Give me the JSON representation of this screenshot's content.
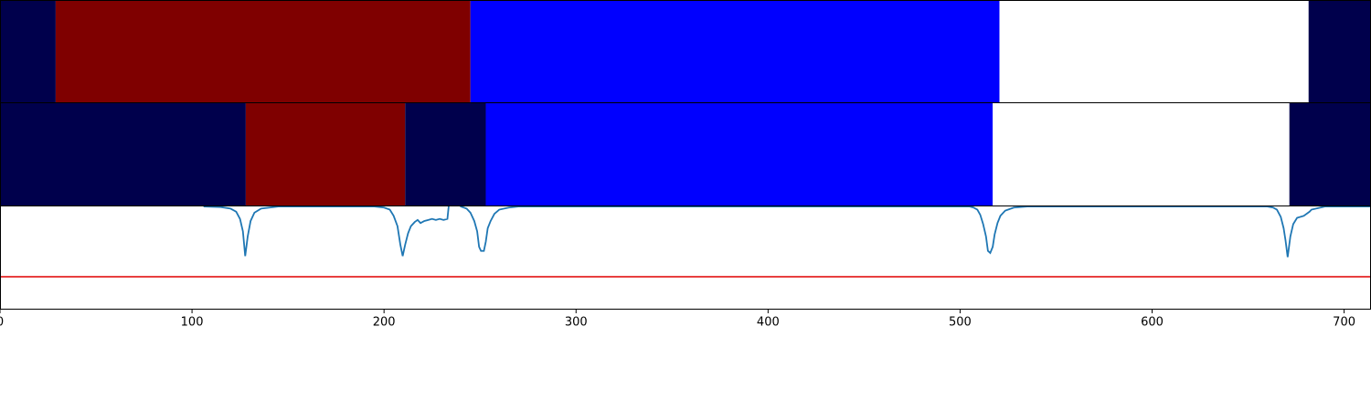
{
  "chart_data": {
    "type": "segmentation",
    "xlim": [
      0,
      714
    ],
    "xticks": [
      0,
      100,
      200,
      300,
      400,
      500,
      600,
      700
    ],
    "rows": [
      {
        "segments": [
          {
            "start": 0,
            "end": 29,
            "color": "#00004c"
          },
          {
            "start": 29,
            "end": 245,
            "color": "#7f0000"
          },
          {
            "start": 245,
            "end": 520.5,
            "color": "#0000ff"
          },
          {
            "start": 520.5,
            "end": 681.5,
            "color": "#ffffff"
          },
          {
            "start": 681.5,
            "end": 714,
            "color": "#00004c"
          }
        ]
      },
      {
        "segments": [
          {
            "start": 0,
            "end": 128,
            "color": "#00004c"
          },
          {
            "start": 128,
            "end": 211,
            "color": "#7f0000"
          },
          {
            "start": 211,
            "end": 253,
            "color": "#00004c"
          },
          {
            "start": 253,
            "end": 517,
            "color": "#0000ff"
          },
          {
            "start": 517,
            "end": 671.5,
            "color": "#ffffff"
          },
          {
            "start": 671.5,
            "end": 714,
            "color": "#00004c"
          }
        ]
      }
    ],
    "signal": {
      "ylim": [
        0,
        1
      ],
      "color": "#1f77b4",
      "threshold": 0.31,
      "threshold_color": "#e00000",
      "x": [
        106,
        115,
        120,
        123,
        125,
        126.5,
        127.7,
        129,
        130.5,
        132.5,
        136,
        145,
        195,
        200,
        203,
        205,
        207,
        208.5,
        209.7,
        211,
        212.5,
        214,
        216,
        217.5,
        219,
        221,
        223,
        225,
        227,
        229,
        231,
        233,
        234,
        238,
        240,
        243,
        245,
        247,
        248.5,
        249.5,
        250.5,
        252,
        253,
        254,
        255.5,
        257.5,
        260,
        265,
        270,
        505,
        507,
        509,
        510.5,
        512,
        513.5,
        514.5,
        515.7,
        517,
        518,
        519.5,
        521,
        523.5,
        528,
        535,
        660,
        663,
        665,
        667,
        668.5,
        669.5,
        670.6,
        672,
        673.5,
        675.5,
        679,
        682,
        683,
        690,
        714
      ],
      "values": [
        0.99,
        0.985,
        0.97,
        0.94,
        0.87,
        0.75,
        0.51,
        0.7,
        0.85,
        0.93,
        0.97,
        0.99,
        0.99,
        0.98,
        0.96,
        0.9,
        0.8,
        0.62,
        0.51,
        0.62,
        0.73,
        0.8,
        0.84,
        0.86,
        0.83,
        0.85,
        0.86,
        0.87,
        0.86,
        0.87,
        0.86,
        0.87,
        1.05,
        1.05,
        0.99,
        0.97,
        0.93,
        0.85,
        0.75,
        0.6,
        0.56,
        0.56,
        0.65,
        0.78,
        0.85,
        0.92,
        0.96,
        0.98,
        0.99,
        0.99,
        0.98,
        0.96,
        0.91,
        0.82,
        0.7,
        0.56,
        0.54,
        0.6,
        0.72,
        0.83,
        0.9,
        0.95,
        0.98,
        0.99,
        0.99,
        0.98,
        0.96,
        0.89,
        0.78,
        0.66,
        0.5,
        0.7,
        0.82,
        0.88,
        0.9,
        0.94,
        0.96,
        0.99,
        0.99
      ]
    }
  }
}
